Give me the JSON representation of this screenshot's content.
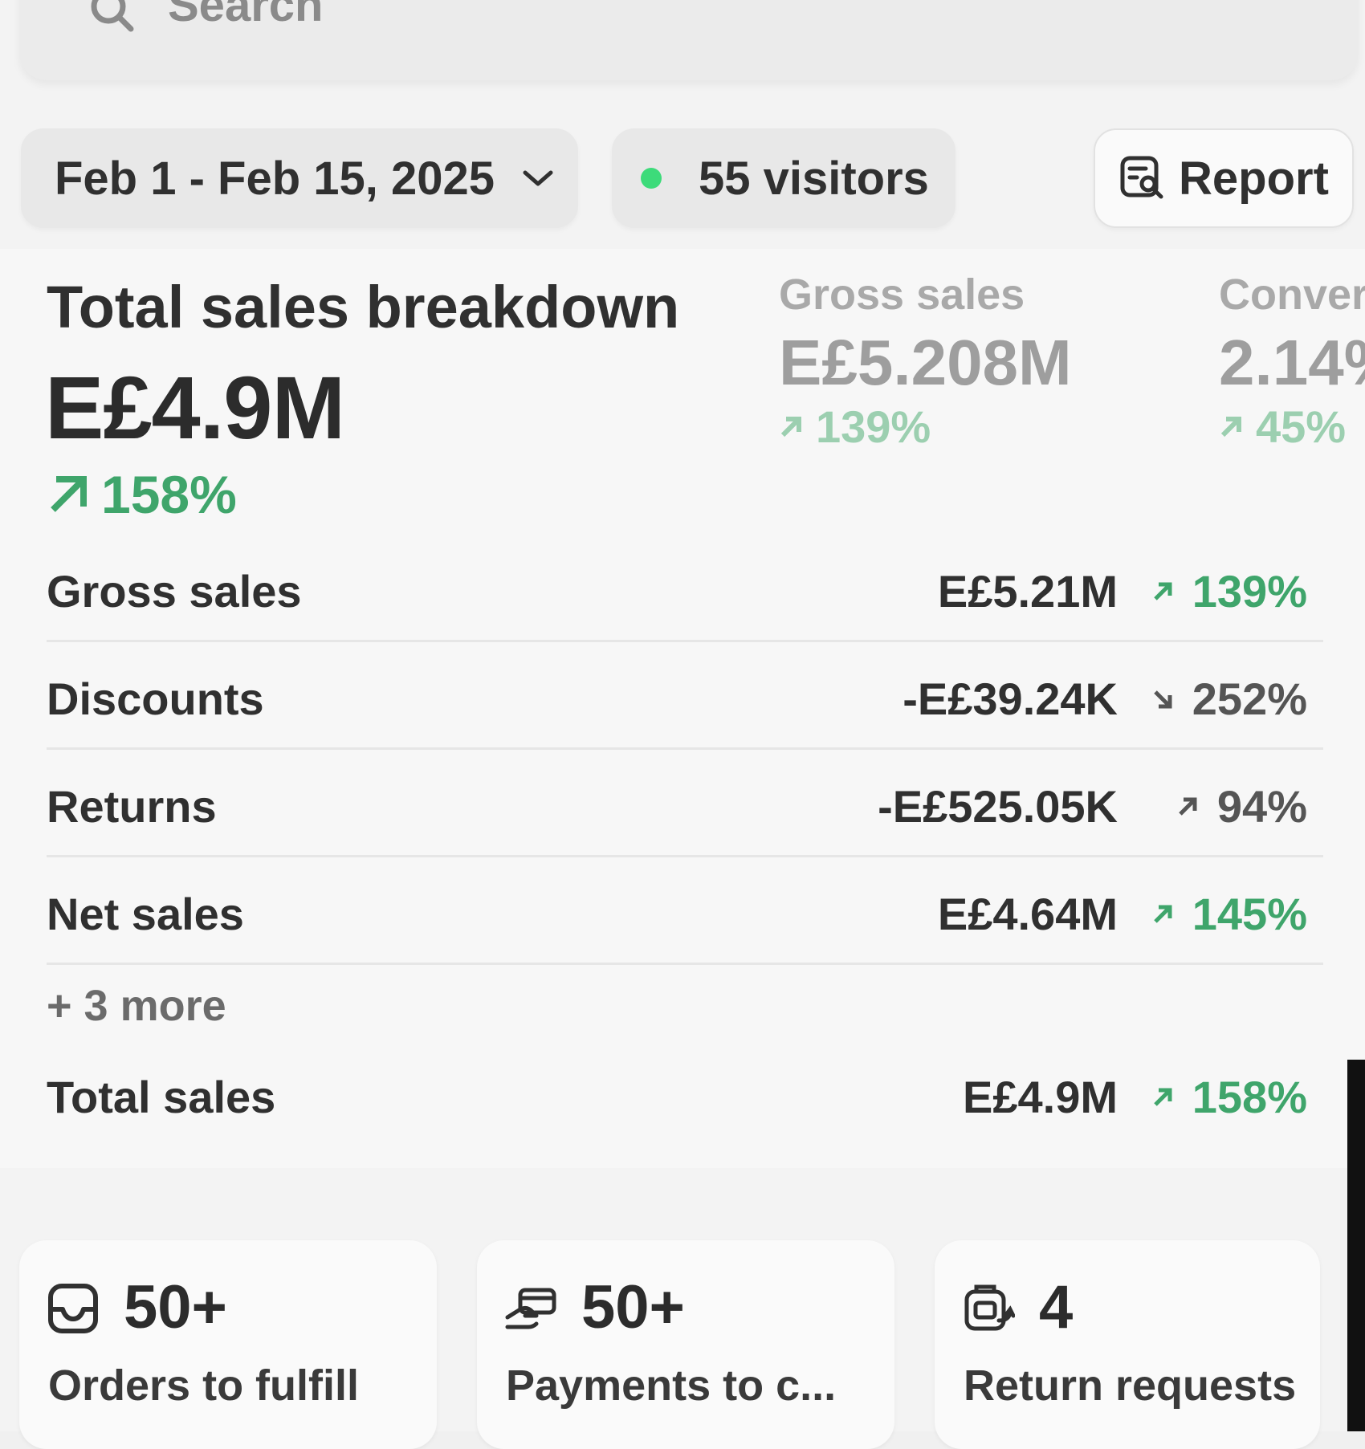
{
  "search": {
    "label": "Search"
  },
  "filters": {
    "date_range": "Feb 1 - Feb 15, 2025",
    "visitors": "55 visitors",
    "report_label": "Report"
  },
  "breakdown": {
    "title": "Total sales breakdown",
    "value": "E£4.9M",
    "change": "158%"
  },
  "metrics": [
    {
      "label": "Gross sales",
      "value": "E£5.208M",
      "change": "139%"
    },
    {
      "label": "Conver",
      "value": "2.14%",
      "change": "45%"
    }
  ],
  "rows": [
    {
      "label": "Gross sales",
      "value": "E£5.21M",
      "change": "139%",
      "direction": "up",
      "tone": "positive"
    },
    {
      "label": "Discounts",
      "value": "-E£39.24K",
      "change": "252%",
      "direction": "down",
      "tone": "neutral"
    },
    {
      "label": "Returns",
      "value": "-E£525.05K",
      "change": "94%",
      "direction": "up",
      "tone": "neutral"
    },
    {
      "label": "Net sales",
      "value": "E£4.64M",
      "change": "145%",
      "direction": "up",
      "tone": "positive"
    }
  ],
  "more_link": "+ 3 more",
  "total_row": {
    "label": "Total sales",
    "value": "E£4.9M",
    "change": "158%",
    "direction": "up",
    "tone": "positive"
  },
  "tasks": [
    {
      "count": "50+",
      "label": "Orders to fulfill",
      "icon": "inbox-icon"
    },
    {
      "count": "50+",
      "label": "Payments to c...",
      "icon": "payment-icon"
    },
    {
      "count": "4",
      "label": "Return requests",
      "icon": "return-icon"
    }
  ],
  "colors": {
    "positive": "#3fa56b",
    "live_dot": "#3ddb7a"
  }
}
